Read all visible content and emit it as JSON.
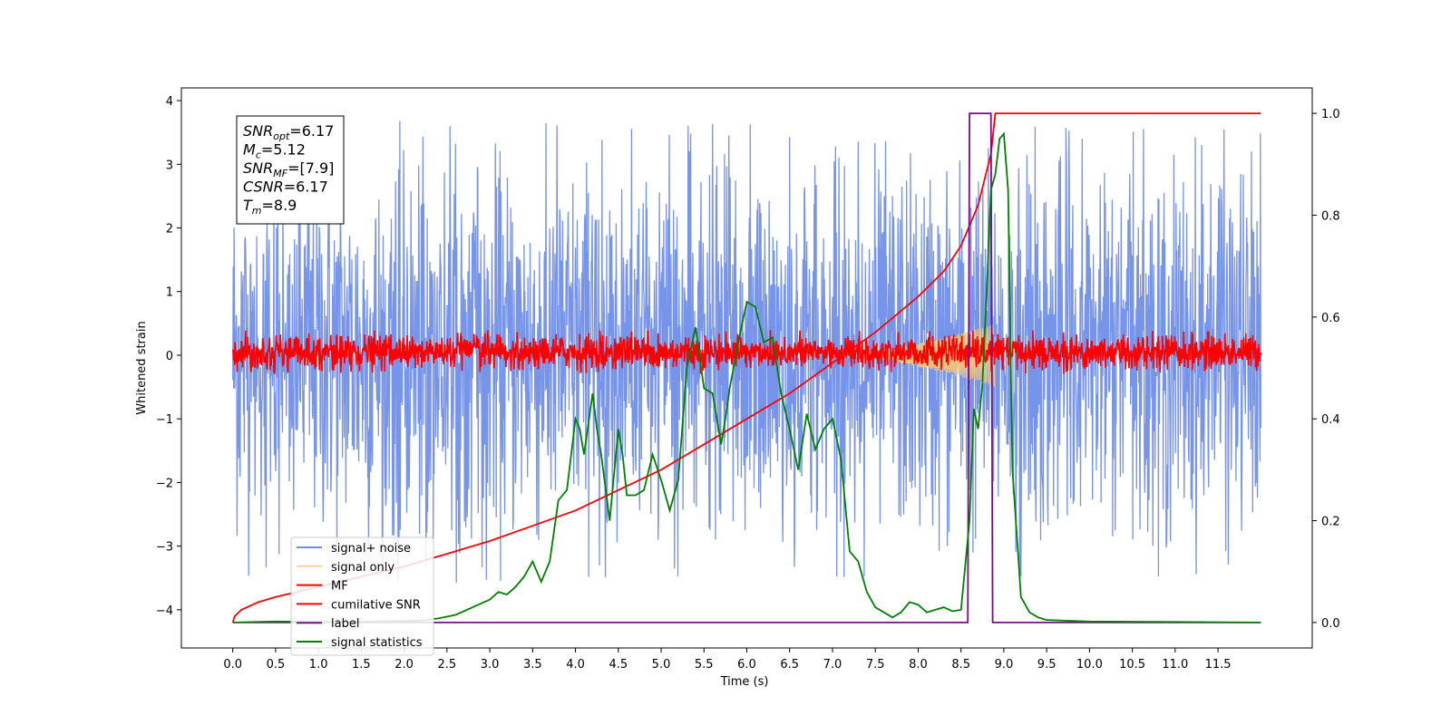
{
  "chart_data": {
    "type": "line",
    "xlabel": "Time (s)",
    "ylabel": "Whitened strain",
    "xlim": [
      -0.6,
      12.6
    ],
    "ylim": [
      -4.6,
      4.2
    ],
    "ylim_right": [
      -0.05,
      1.05
    ],
    "x_ticks": [
      "0.0",
      "0.5",
      "1.0",
      "1.5",
      "2.0",
      "2.5",
      "3.0",
      "3.5",
      "4.0",
      "4.5",
      "5.0",
      "5.5",
      "6.0",
      "6.5",
      "7.0",
      "7.5",
      "8.0",
      "8.5",
      "9.0",
      "9.5",
      "10.0",
      "10.5",
      "11.0",
      "11.5"
    ],
    "x_tick_values": [
      0.0,
      0.5,
      1.0,
      1.5,
      2.0,
      2.5,
      3.0,
      3.5,
      4.0,
      4.5,
      5.0,
      5.5,
      6.0,
      6.5,
      7.0,
      7.5,
      8.0,
      8.5,
      9.0,
      9.5,
      10.0,
      10.5,
      11.0,
      11.5
    ],
    "y_ticks": [
      "−4",
      "−3",
      "−2",
      "−1",
      "0",
      "1",
      "2",
      "3",
      "4"
    ],
    "y_tick_values": [
      -4,
      -3,
      -2,
      -1,
      0,
      1,
      2,
      3,
      4
    ],
    "y2_ticks": [
      "0.0",
      "0.2",
      "0.4",
      "0.6",
      "0.8",
      "1.0"
    ],
    "y2_tick_values": [
      0.0,
      0.2,
      0.4,
      0.6,
      0.8,
      1.0
    ],
    "grid": false,
    "legend_position": "lower-left",
    "annotation": [
      {
        "label": "SNR",
        "sub": "opt",
        "value": "=6.17"
      },
      {
        "label": "M",
        "sub": "c",
        "value": "=5.12"
      },
      {
        "label": "SNR",
        "sub": "MF",
        "value": "=[7.9]"
      },
      {
        "label": "CSNR",
        "sub": "",
        "value": "=6.17"
      },
      {
        "label": "T",
        "sub": "m",
        "value": "=8.9"
      }
    ],
    "series": [
      {
        "name": "signal+ noise",
        "color": "#6f8ee8",
        "axis": "left",
        "kind": "noise",
        "amplitude_band": [
          -3.6,
          3.7
        ],
        "x_range": [
          0.0,
          12.0
        ]
      },
      {
        "name": "signal only",
        "color": "#f5c77a",
        "axis": "left",
        "kind": "chirp",
        "x_range": [
          7.0,
          8.9
        ],
        "peak_amplitude": 0.5
      },
      {
        "name": "MF",
        "color": "#ff0000",
        "axis": "left",
        "kind": "noise",
        "amplitude_band": [
          -0.3,
          0.4
        ],
        "x_range": [
          0.0,
          12.0
        ]
      },
      {
        "name": "cumilative SNR",
        "color": "#ff0000",
        "axis": "right",
        "x": [
          0.0,
          0.02,
          0.1,
          0.3,
          0.5,
          1.0,
          1.5,
          2.0,
          2.5,
          3.0,
          3.5,
          4.0,
          4.5,
          5.0,
          5.5,
          6.0,
          6.5,
          7.0,
          7.5,
          8.0,
          8.3,
          8.5,
          8.7,
          8.85,
          8.9,
          12.0
        ],
        "y": [
          0.0,
          0.012,
          0.025,
          0.04,
          0.05,
          0.07,
          0.09,
          0.11,
          0.135,
          0.16,
          0.19,
          0.22,
          0.26,
          0.3,
          0.35,
          0.4,
          0.45,
          0.51,
          0.57,
          0.64,
          0.69,
          0.74,
          0.82,
          0.92,
          1.0,
          1.0
        ]
      },
      {
        "name": "label",
        "color": "#7a0a8a",
        "axis": "right",
        "x": [
          0.0,
          8.58,
          8.6,
          8.85,
          8.87,
          8.9,
          8.92,
          12.0
        ],
        "y": [
          0.0,
          0.0,
          1.0,
          1.0,
          0.0,
          0.0,
          0.0,
          0.0
        ]
      },
      {
        "name": "signal statistics",
        "color": "#008000",
        "axis": "right",
        "x": [
          0.0,
          0.5,
          1.0,
          1.5,
          2.0,
          2.2,
          2.4,
          2.6,
          2.8,
          3.0,
          3.1,
          3.2,
          3.3,
          3.4,
          3.5,
          3.6,
          3.7,
          3.8,
          3.9,
          4.0,
          4.05,
          4.1,
          4.2,
          4.25,
          4.3,
          4.4,
          4.5,
          4.55,
          4.6,
          4.7,
          4.8,
          4.9,
          5.0,
          5.05,
          5.1,
          5.2,
          5.3,
          5.4,
          5.5,
          5.6,
          5.7,
          5.75,
          5.8,
          5.9,
          6.0,
          6.1,
          6.2,
          6.3,
          6.4,
          6.5,
          6.6,
          6.7,
          6.8,
          6.9,
          7.0,
          7.1,
          7.2,
          7.3,
          7.4,
          7.5,
          7.6,
          7.7,
          7.8,
          7.9,
          8.0,
          8.1,
          8.2,
          8.3,
          8.4,
          8.5,
          8.6,
          8.65,
          8.7,
          8.75,
          8.8,
          8.85,
          8.9,
          8.95,
          9.0,
          9.05,
          9.1,
          9.2,
          9.3,
          9.4,
          9.5,
          10.0,
          11.0,
          12.0
        ],
        "y": [
          0.0,
          0.002,
          0.001,
          0.002,
          0.003,
          0.004,
          0.008,
          0.015,
          0.03,
          0.045,
          0.06,
          0.055,
          0.07,
          0.09,
          0.12,
          0.08,
          0.12,
          0.24,
          0.26,
          0.4,
          0.38,
          0.33,
          0.45,
          0.38,
          0.33,
          0.2,
          0.38,
          0.33,
          0.25,
          0.25,
          0.26,
          0.33,
          0.28,
          0.25,
          0.22,
          0.28,
          0.5,
          0.58,
          0.46,
          0.45,
          0.35,
          0.4,
          0.46,
          0.55,
          0.63,
          0.62,
          0.55,
          0.56,
          0.45,
          0.38,
          0.3,
          0.41,
          0.34,
          0.38,
          0.4,
          0.32,
          0.14,
          0.12,
          0.06,
          0.03,
          0.02,
          0.01,
          0.02,
          0.04,
          0.035,
          0.02,
          0.025,
          0.03,
          0.022,
          0.025,
          0.2,
          0.42,
          0.38,
          0.47,
          0.65,
          0.85,
          0.88,
          0.95,
          0.96,
          0.85,
          0.3,
          0.05,
          0.02,
          0.01,
          0.005,
          0.002,
          0.001,
          0.0
        ]
      }
    ]
  }
}
